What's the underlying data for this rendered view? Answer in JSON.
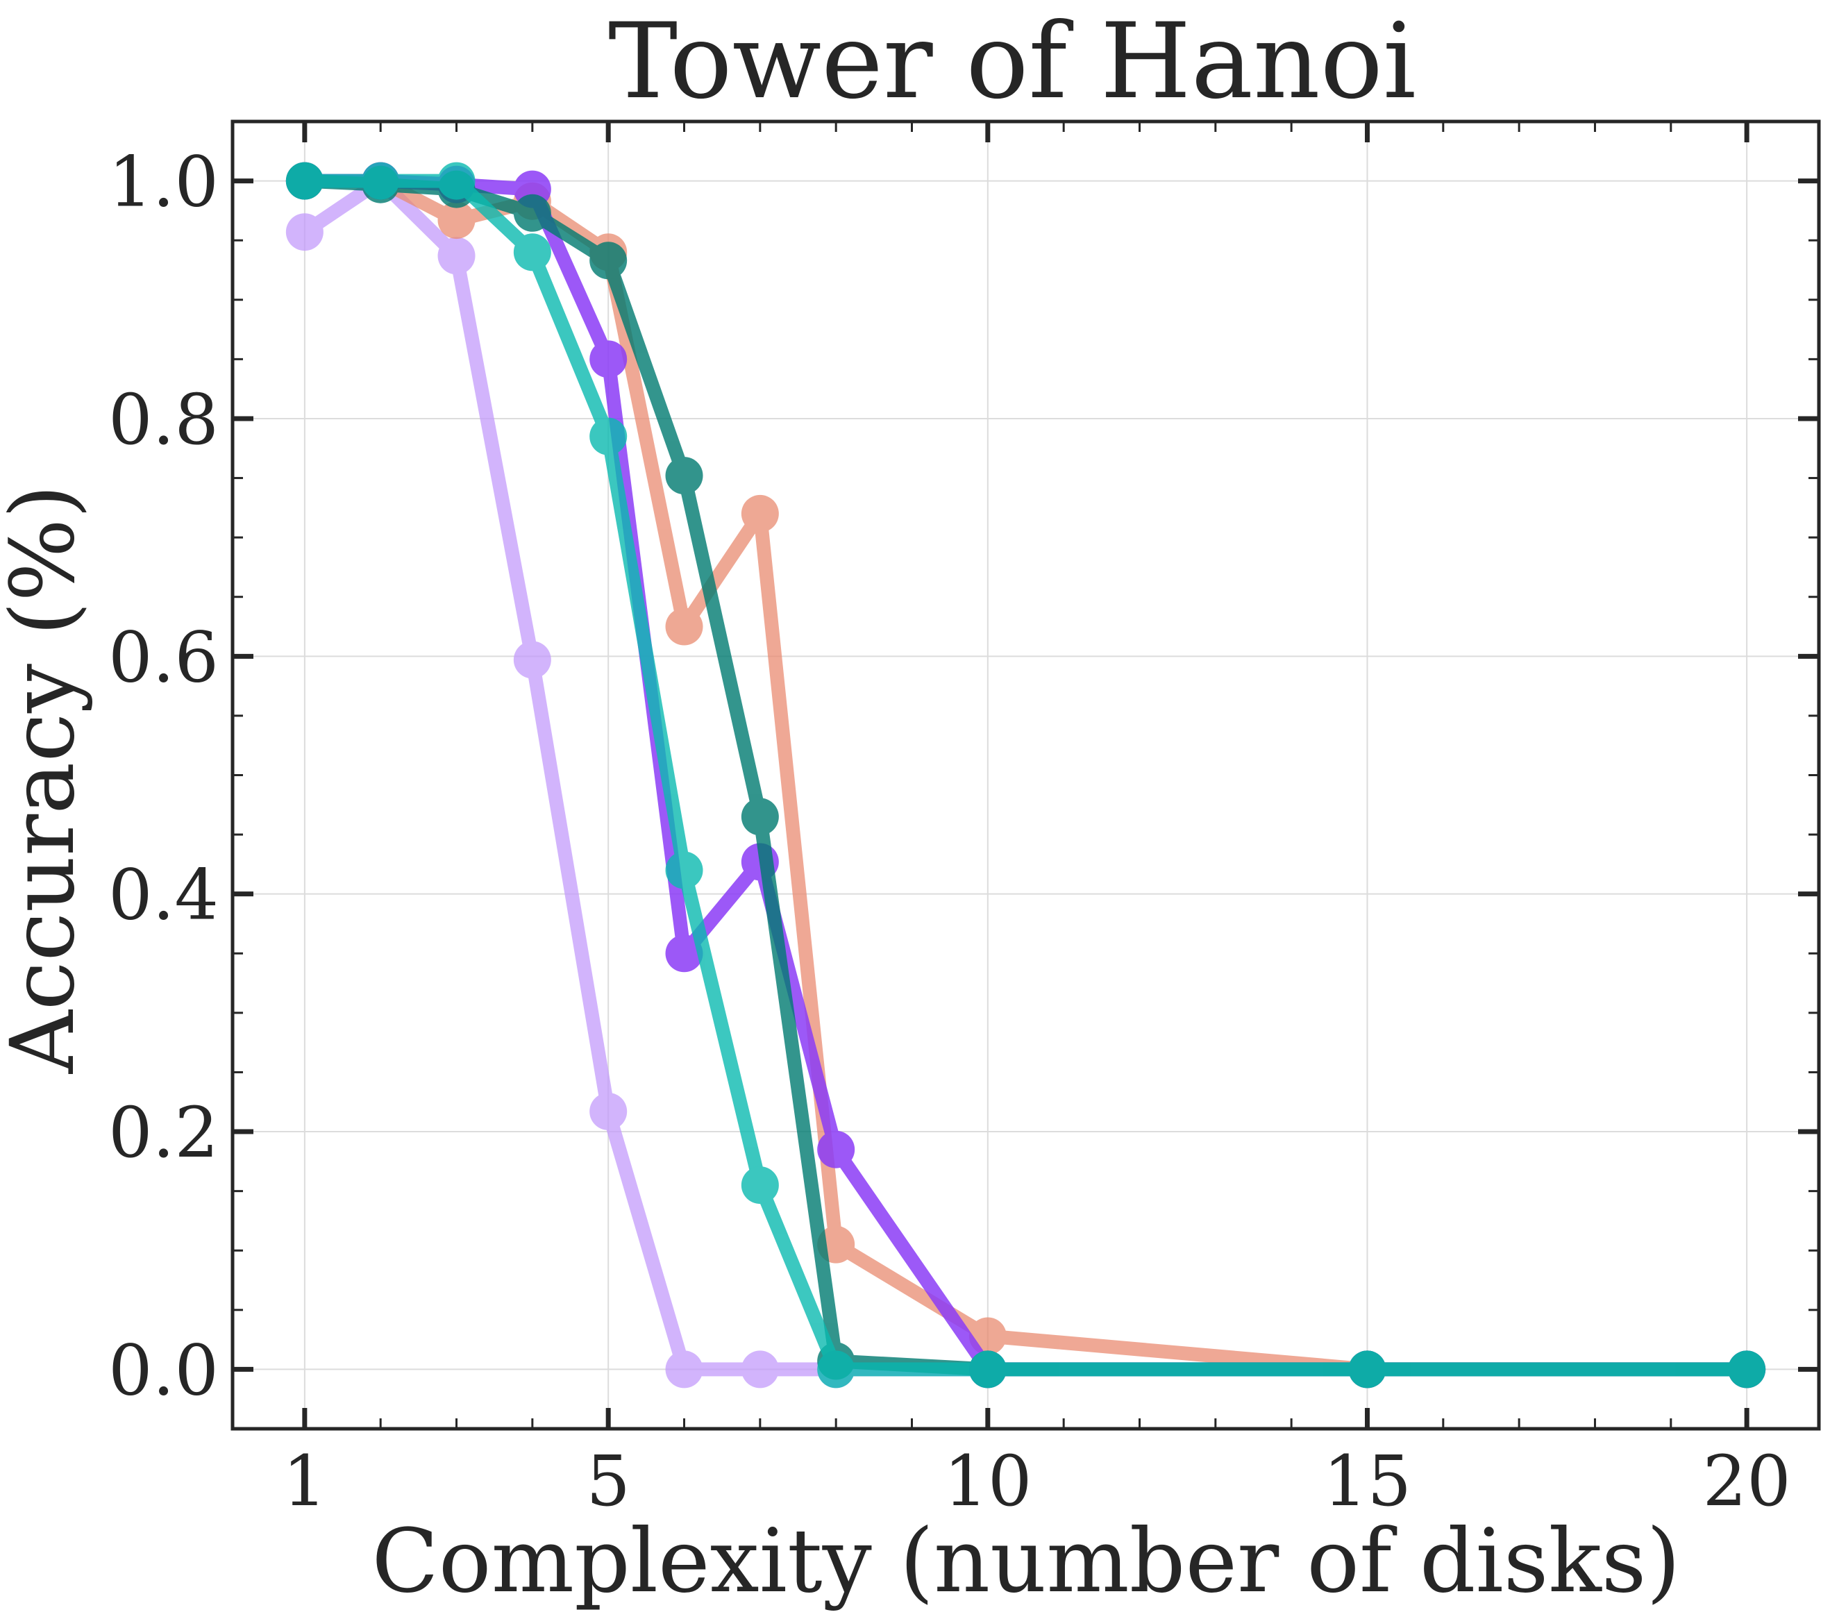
{
  "chart_data": {
    "type": "line",
    "title": "Tower of Hanoi",
    "xlabel": "Complexity (number of disks)",
    "ylabel": "Accuracy (%)",
    "xlim": [
      0.05,
      20.95
    ],
    "ylim": [
      -0.05,
      1.05
    ],
    "xticks": [
      1,
      5,
      10,
      15,
      20
    ],
    "xtick_labels": [
      "1",
      "5",
      "10",
      "15",
      "20"
    ],
    "yticks": [
      0.0,
      0.2,
      0.4,
      0.6,
      0.8,
      1.0
    ],
    "ytick_labels": [
      "0.0",
      "0.2",
      "0.4",
      "0.6",
      "0.8",
      "1.0"
    ],
    "grid": true,
    "legend": "none",
    "series": [
      {
        "color": "#c39bfb",
        "opacity": 0.75,
        "x": [
          1,
          2,
          3,
          4,
          5,
          6,
          7,
          8,
          10,
          15,
          20
        ],
        "y": [
          0.957,
          1.0,
          0.937,
          0.597,
          0.217,
          0.0,
          0.0,
          0.0,
          0.0,
          0.0,
          0.0
        ]
      },
      {
        "color": "#e98b71",
        "opacity": 0.75,
        "x": [
          1,
          2,
          3,
          4,
          5,
          6,
          7,
          8,
          10,
          15,
          20
        ],
        "y": [
          1.0,
          1.0,
          0.967,
          0.983,
          0.94,
          0.625,
          0.72,
          0.105,
          0.028,
          0.0,
          0.0
        ]
      },
      {
        "color": "#8b3cf6",
        "opacity": 0.85,
        "x": [
          1,
          2,
          3,
          4,
          5,
          6,
          7,
          8,
          10,
          15,
          20
        ],
        "y": [
          1.0,
          1.0,
          0.997,
          0.993,
          0.85,
          0.35,
          0.427,
          0.185,
          0.0,
          0.0,
          0.0
        ]
      },
      {
        "color": "#007a70",
        "opacity": 0.8,
        "x": [
          1,
          2,
          3,
          4,
          5,
          6,
          7,
          8,
          10,
          15,
          20
        ],
        "y": [
          1.0,
          0.997,
          0.993,
          0.973,
          0.933,
          0.752,
          0.465,
          0.007,
          0.0,
          0.0,
          0.0
        ]
      },
      {
        "color": "#0bbab0",
        "opacity": 0.8,
        "x": [
          1,
          2,
          3,
          4,
          5,
          6,
          7,
          8,
          10,
          15,
          20
        ],
        "y": [
          1.0,
          1.0,
          1.0,
          0.94,
          0.785,
          0.42,
          0.155,
          0.0,
          0.0,
          0.0,
          0.0
        ]
      }
    ]
  }
}
